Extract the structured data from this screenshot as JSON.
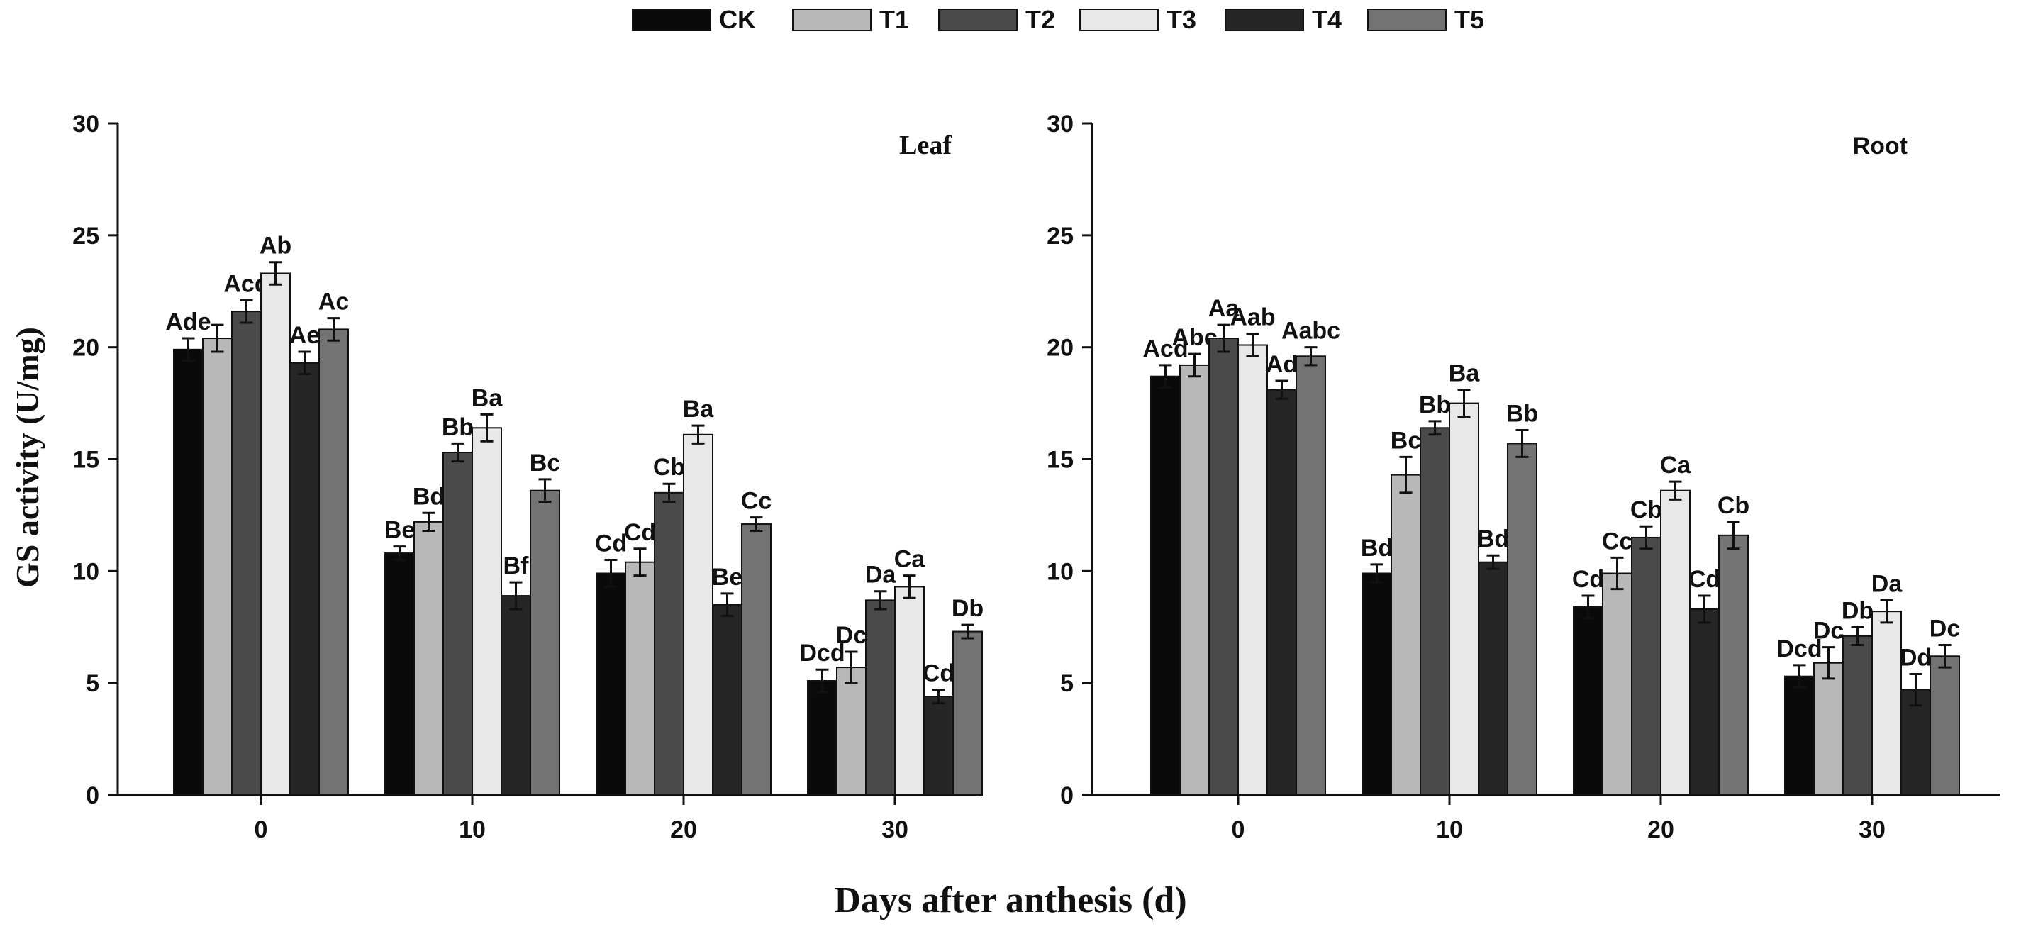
{
  "figure": {
    "ylabel": "GS activity (U/mg)",
    "xlabel": "Days after anthesis (d)"
  },
  "legend": {
    "placement": "top-center",
    "items": [
      {
        "name": "CK",
        "color": "#0a0a0a"
      },
      {
        "name": "T1",
        "color": "#b8b8b8"
      },
      {
        "name": "T2",
        "color": "#4a4a4a"
      },
      {
        "name": "T3",
        "color": "#e8e8e8"
      },
      {
        "name": "T4",
        "color": "#262626"
      },
      {
        "name": "T5",
        "color": "#737373"
      }
    ]
  },
  "chart_data": [
    {
      "type": "bar",
      "title": "Leaf",
      "xlabel": "Days after anthesis (d)",
      "ylabel": "GS activity (U/mg)",
      "ylim": [
        0,
        30
      ],
      "yticks": [
        0,
        5,
        10,
        15,
        20,
        25,
        30
      ],
      "categories": [
        "0",
        "10",
        "20",
        "30"
      ],
      "series": [
        {
          "name": "CK",
          "values": [
            19.9,
            10.8,
            9.9,
            5.1
          ],
          "errors": [
            0.5,
            0.3,
            0.6,
            0.5
          ],
          "labels": [
            "Ade",
            "Be",
            "Cd",
            "Dcd"
          ]
        },
        {
          "name": "T1",
          "values": [
            20.4,
            12.2,
            10.4,
            5.7
          ],
          "errors": [
            0.6,
            0.4,
            0.6,
            0.7
          ],
          "labels": [
            "",
            "Bd",
            "Cd",
            "Dc"
          ]
        },
        {
          "name": "T2",
          "values": [
            21.6,
            15.3,
            13.5,
            8.7
          ],
          "errors": [
            0.5,
            0.4,
            0.4,
            0.4
          ],
          "labels": [
            "Acd",
            "Bb",
            "Cb",
            "Da"
          ]
        },
        {
          "name": "T3",
          "values": [
            23.3,
            16.4,
            16.1,
            9.3
          ],
          "errors": [
            0.5,
            0.6,
            0.4,
            0.5
          ],
          "labels": [
            "Ab",
            "Ba",
            "Ba",
            "Ca"
          ]
        },
        {
          "name": "T4",
          "values": [
            19.3,
            8.9,
            8.5,
            4.4
          ],
          "errors": [
            0.5,
            0.6,
            0.5,
            0.3
          ],
          "labels": [
            "Ae",
            "Bf",
            "Be",
            "Cd"
          ]
        },
        {
          "name": "T5",
          "values": [
            20.8,
            13.6,
            12.1,
            7.3
          ],
          "errors": [
            0.5,
            0.5,
            0.3,
            0.3
          ],
          "labels": [
            "Ac",
            "Bc",
            "Cc",
            "Db"
          ]
        }
      ]
    },
    {
      "type": "bar",
      "title": "Root",
      "xlabel": "Days after anthesis (d)",
      "ylabel": "GS activity (U/mg)",
      "ylim": [
        0,
        30
      ],
      "yticks": [
        0,
        5,
        10,
        15,
        20,
        25,
        30
      ],
      "categories": [
        "0",
        "10",
        "20",
        "30"
      ],
      "series": [
        {
          "name": "CK",
          "values": [
            18.7,
            9.9,
            8.4,
            5.3
          ],
          "errors": [
            0.5,
            0.4,
            0.5,
            0.5
          ],
          "labels": [
            "Acd",
            "Bd",
            "Cd",
            "Dcd"
          ]
        },
        {
          "name": "T1",
          "values": [
            19.2,
            14.3,
            9.9,
            5.9
          ],
          "errors": [
            0.5,
            0.8,
            0.7,
            0.7
          ],
          "labels": [
            "Abc",
            "Bc",
            "Cc",
            "Dc"
          ]
        },
        {
          "name": "T2",
          "values": [
            20.4,
            16.4,
            11.5,
            7.1
          ],
          "errors": [
            0.6,
            0.3,
            0.5,
            0.4
          ],
          "labels": [
            "Aa",
            "Bb",
            "Cb",
            "Db"
          ]
        },
        {
          "name": "T3",
          "values": [
            20.1,
            17.5,
            13.6,
            8.2
          ],
          "errors": [
            0.5,
            0.6,
            0.4,
            0.5
          ],
          "labels": [
            "Aab",
            "Ba",
            "Ca",
            "Da"
          ]
        },
        {
          "name": "T4",
          "values": [
            18.1,
            10.4,
            8.3,
            4.7
          ],
          "errors": [
            0.4,
            0.3,
            0.6,
            0.7
          ],
          "labels": [
            "Ad",
            "Bd",
            "Cd",
            "Dd"
          ]
        },
        {
          "name": "T5",
          "values": [
            19.6,
            15.7,
            11.6,
            6.2
          ],
          "errors": [
            0.4,
            0.6,
            0.6,
            0.5
          ],
          "labels": [
            "Aabc",
            "Bb",
            "Cb",
            "Dc"
          ]
        }
      ]
    }
  ]
}
